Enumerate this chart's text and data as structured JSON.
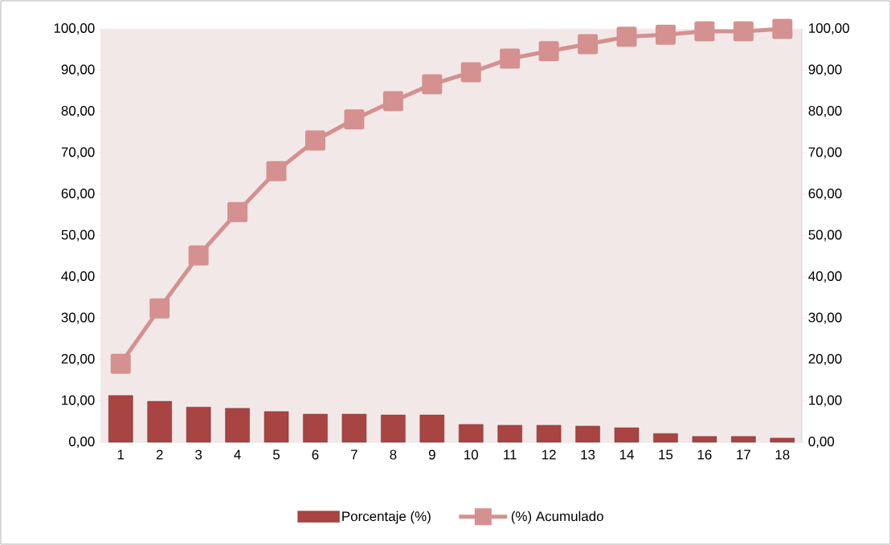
{
  "chart_data": {
    "type": "bar",
    "categories": [
      "1",
      "2",
      "3",
      "4",
      "5",
      "6",
      "7",
      "8",
      "9",
      "10",
      "11",
      "12",
      "13",
      "14",
      "15",
      "16",
      "17",
      "18"
    ],
    "series": [
      {
        "name": "Porcentaje (%)",
        "color": "#a84442",
        "values": [
          11.3,
          9.9,
          8.5,
          8.2,
          7.4,
          6.8,
          6.8,
          6.6,
          6.6,
          4.3,
          4.1,
          4.1,
          3.9,
          3.5,
          2.1,
          1.4,
          1.4,
          1.0
        ]
      },
      {
        "name": "(%) Acumulado",
        "type": "line",
        "axis": "y2",
        "color": "#d4918f",
        "marker": "square",
        "values": [
          19.0,
          32.4,
          45.2,
          55.7,
          65.6,
          73.0,
          78.1,
          82.5,
          86.6,
          89.5,
          92.8,
          94.6,
          96.3,
          98.1,
          98.6,
          99.4,
          99.4,
          100.0
        ]
      }
    ],
    "ylim": [
      0,
      100
    ],
    "yticks": [
      {
        "value": 0,
        "label": "0,00"
      },
      {
        "value": 10,
        "label": "10,00"
      },
      {
        "value": 20,
        "label": "20,00"
      },
      {
        "value": 30,
        "label": "30,00"
      },
      {
        "value": 40,
        "label": "40,00"
      },
      {
        "value": 50,
        "label": "50,00"
      },
      {
        "value": 60,
        "label": "60,00"
      },
      {
        "value": 70,
        "label": "70,00"
      },
      {
        "value": 80,
        "label": "80,00"
      },
      {
        "value": 90,
        "label": "90,00"
      },
      {
        "value": 100,
        "label": "100,00"
      }
    ],
    "y2lim": [
      0,
      100
    ],
    "y2ticks": [
      {
        "value": 0,
        "label": "0,00"
      },
      {
        "value": 10,
        "label": "10,00"
      },
      {
        "value": 20,
        "label": "20,00"
      },
      {
        "value": 30,
        "label": "30,00"
      },
      {
        "value": 40,
        "label": "40,00"
      },
      {
        "value": 50,
        "label": "50,00"
      },
      {
        "value": 60,
        "label": "60,00"
      },
      {
        "value": 70,
        "label": "70,00"
      },
      {
        "value": 80,
        "label": "80,00"
      },
      {
        "value": 90,
        "label": "90,00"
      },
      {
        "value": 100,
        "label": "100,00"
      }
    ],
    "grid": false,
    "legend": "bottom"
  }
}
